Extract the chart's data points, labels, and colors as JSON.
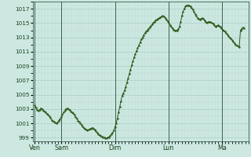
{
  "background_color": "#cce8e0",
  "plot_bg_color": "#cce8e0",
  "line_color": "#2d5a1b",
  "dot_color": "#2d5a1b",
  "grid_major_color": "#aacfc8",
  "grid_minor_color": "#bdd9d4",
  "vline_color": "#3a6050",
  "tick_label_color": "#1e4020",
  "ylim": [
    998.5,
    1018.0
  ],
  "yticks": [
    999,
    1001,
    1003,
    1005,
    1007,
    1009,
    1011,
    1013,
    1015,
    1017
  ],
  "day_labels": [
    "Ven",
    "Sam",
    "Dim",
    "Lun",
    "Ma"
  ],
  "day_positions": [
    0,
    24,
    72,
    120,
    168
  ],
  "total_hours": 188,
  "pressure_data": [
    1003.5,
    1003.2,
    1002.9,
    1002.8,
    1002.9,
    1003.1,
    1003.0,
    1002.8,
    1002.7,
    1002.5,
    1002.3,
    1002.2,
    1002.0,
    1001.8,
    1001.5,
    1001.3,
    1001.2,
    1001.1,
    1001.0,
    1001.1,
    1001.4,
    1001.6,
    1001.9,
    1002.2,
    1002.5,
    1002.8,
    1003.0,
    1003.1,
    1003.0,
    1002.9,
    1002.7,
    1002.5,
    1002.4,
    1002.2,
    1001.9,
    1001.7,
    1001.4,
    1001.2,
    1001.0,
    1000.8,
    1000.6,
    1000.4,
    1000.2,
    1000.1,
    1000.0,
    1000.1,
    1000.2,
    1000.3,
    1000.4,
    1000.3,
    1000.1,
    999.9,
    999.7,
    999.5,
    999.4,
    999.3,
    999.2,
    999.1,
    999.0,
    998.9,
    998.9,
    999.0,
    999.1,
    999.3,
    999.5,
    999.7,
    1000.0,
    1000.5,
    1001.0,
    1001.7,
    1002.5,
    1003.3,
    1004.1,
    1004.9,
    1005.2,
    1005.6,
    1006.1,
    1006.7,
    1007.3,
    1007.9,
    1008.5,
    1009.1,
    1009.7,
    1010.2,
    1010.7,
    1011.1,
    1011.5,
    1011.9,
    1012.3,
    1012.7,
    1013.0,
    1013.3,
    1013.6,
    1013.8,
    1014.0,
    1014.2,
    1014.4,
    1014.6,
    1014.8,
    1015.0,
    1015.2,
    1015.4,
    1015.5,
    1015.6,
    1015.7,
    1015.8,
    1015.9,
    1016.0,
    1015.9,
    1015.7,
    1015.5,
    1015.3,
    1015.0,
    1014.7,
    1014.5,
    1014.3,
    1014.1,
    1014.0,
    1013.9,
    1014.0,
    1014.2,
    1014.5,
    1015.2,
    1016.0,
    1016.6,
    1017.0,
    1017.3,
    1017.5,
    1017.5,
    1017.4,
    1017.3,
    1017.1,
    1016.9,
    1016.6,
    1016.3,
    1016.0,
    1015.7,
    1015.6,
    1015.5,
    1015.6,
    1015.7,
    1015.6,
    1015.4,
    1015.2,
    1015.0,
    1015.1,
    1015.2,
    1015.1,
    1015.0,
    1014.9,
    1014.7,
    1014.5,
    1014.6,
    1014.7,
    1014.6,
    1014.5,
    1014.3,
    1014.1,
    1013.9,
    1013.8,
    1013.6,
    1013.4,
    1013.2,
    1013.0,
    1012.8,
    1012.6,
    1012.4,
    1012.2,
    1012.0,
    1011.9,
    1011.8,
    1011.7,
    1014.0,
    1014.2,
    1014.4,
    1014.3
  ]
}
